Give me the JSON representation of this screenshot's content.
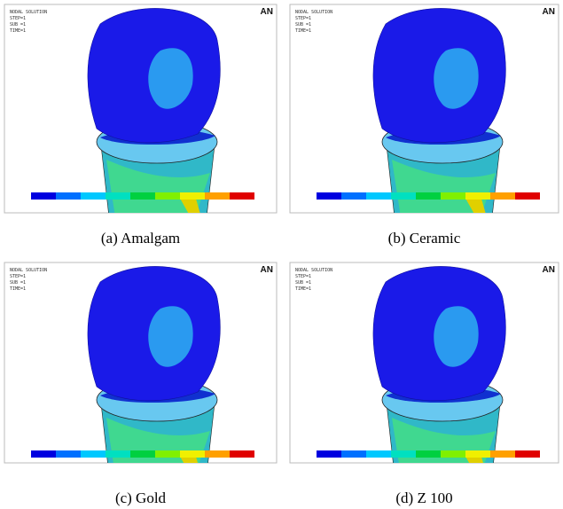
{
  "panels": [
    {
      "caption": "(a) Amalgam",
      "header": [
        "NODAL SOLUTION",
        "STEP=1",
        "SUB =1",
        "TIME=1"
      ],
      "logo": "AN"
    },
    {
      "caption": "(b) Ceramic",
      "header": [
        "NODAL SOLUTION",
        "STEP=1",
        "SUB =1",
        "TIME=1"
      ],
      "logo": "AN"
    },
    {
      "caption": "(c) Gold",
      "header": [
        "NODAL SOLUTION",
        "STEP=1",
        "SUB =1",
        "TIME=1"
      ],
      "logo": "AN"
    },
    {
      "caption": "(d) Z 100",
      "header": [
        "NODAL SOLUTION",
        "STEP=1",
        "SUB =1",
        "TIME=1"
      ],
      "logo": "AN"
    }
  ]
}
